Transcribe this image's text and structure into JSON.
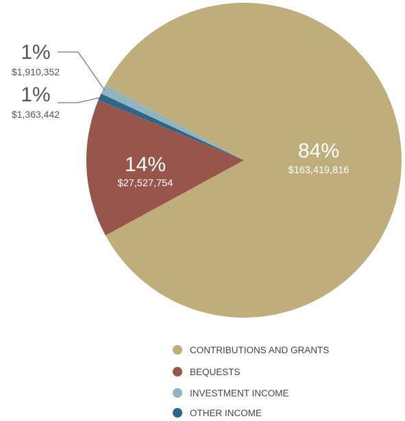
{
  "chart_data": {
    "type": "pie",
    "slices": [
      {
        "name": "CONTRIBUTIONS AND GRANTS",
        "percent": "84%",
        "amount": "$163,419,816",
        "value": 163419816,
        "color": "#bfad7b"
      },
      {
        "name": "BEQUESTS",
        "percent": "14%",
        "amount": "$27,527,754",
        "value": 27527754,
        "color": "#98564a"
      },
      {
        "name": "OTHER INCOME",
        "percent": "1%",
        "amount": "$1,363,442",
        "value": 1363442,
        "color": "#2e6687"
      },
      {
        "name": "INVESTMENT INCOME",
        "percent": "1%",
        "amount": "$1,910,352",
        "value": 1910352,
        "color": "#92b4bf"
      }
    ],
    "legend": [
      {
        "label": "CONTRIBUTIONS AND GRANTS",
        "color": "#bfad7b"
      },
      {
        "label": "BEQUESTS",
        "color": "#98564a"
      },
      {
        "label": "INVESTMENT INCOME",
        "color": "#92b4bf"
      },
      {
        "label": "OTHER INCOME",
        "color": "#2e6687"
      }
    ],
    "legend_position": "bottom"
  }
}
